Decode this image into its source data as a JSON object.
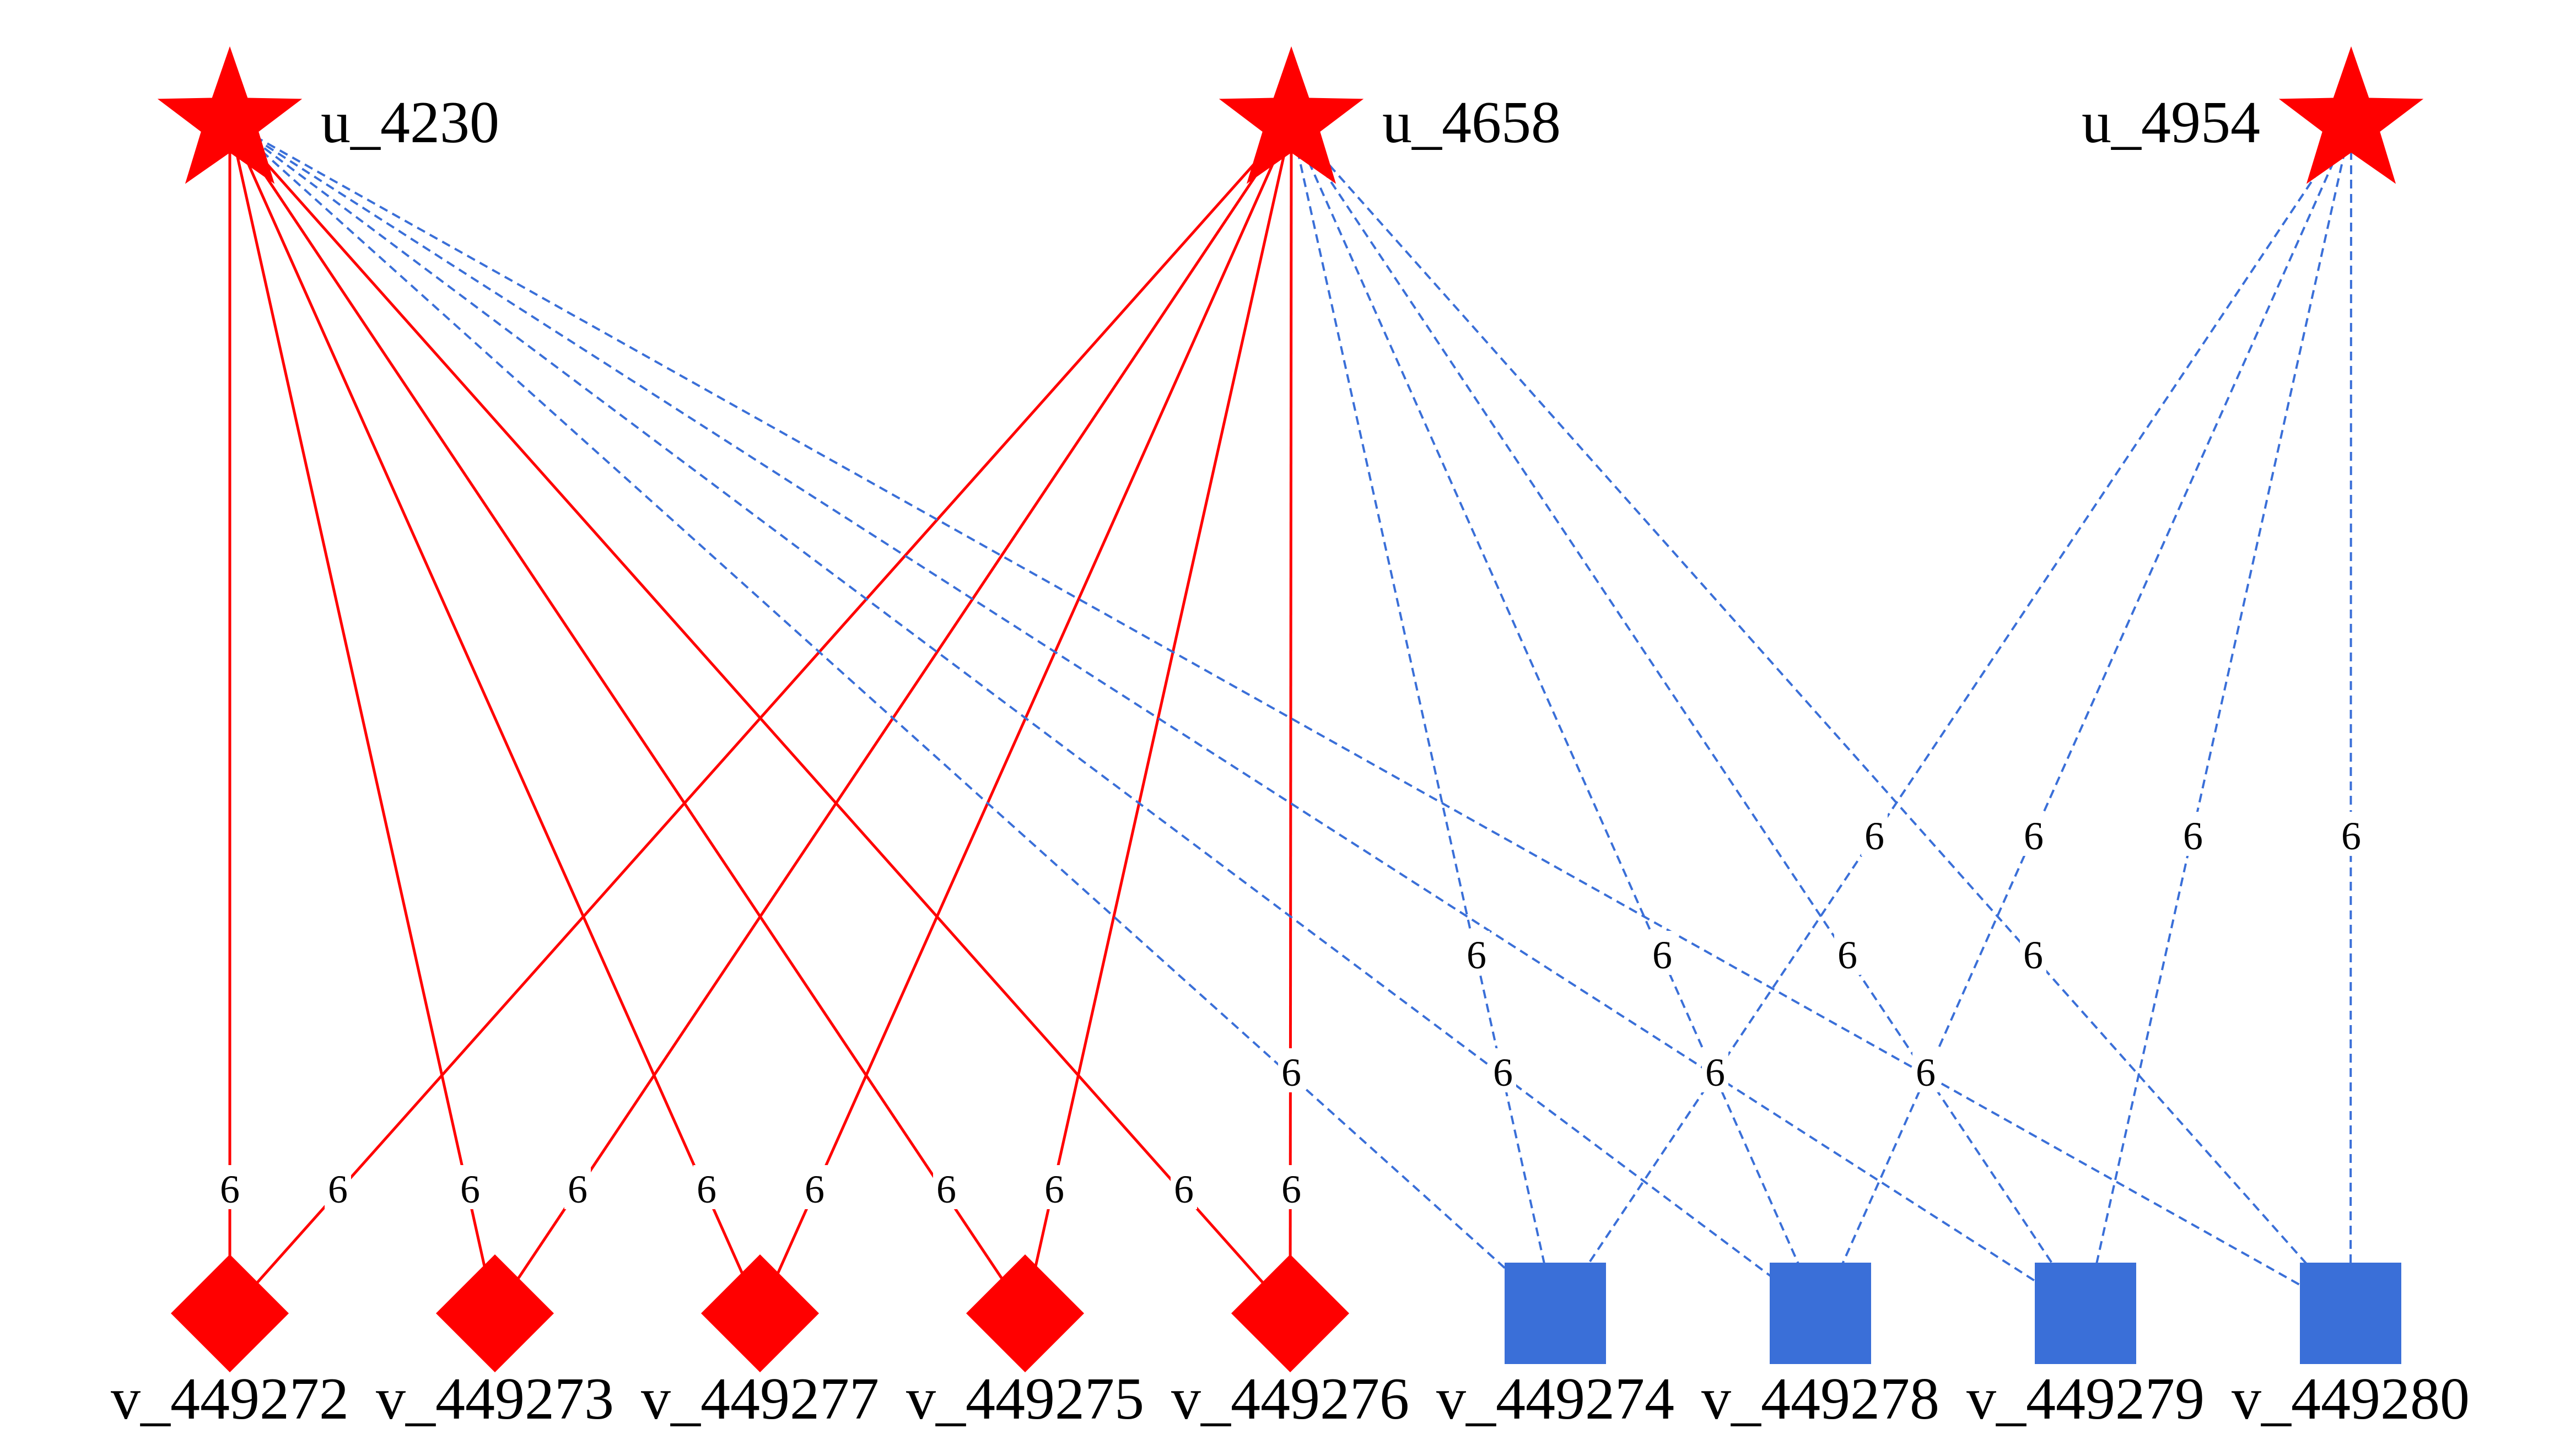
{
  "colors": {
    "user": "#ff0000",
    "red_item": "#ff0000",
    "blue_item": "#3a6fd8",
    "red_edge": "#ff0000",
    "blue_edge": "#3a6fd8"
  },
  "users": [
    {
      "id": "u_4230",
      "label": "u_4230",
      "shape": "star"
    },
    {
      "id": "u_4658",
      "label": "u_4658",
      "shape": "star"
    },
    {
      "id": "u_4954",
      "label": "u_4954",
      "shape": "star"
    }
  ],
  "items": [
    {
      "id": "v_449272",
      "label": "v_449272",
      "shape": "diamond",
      "group": "red"
    },
    {
      "id": "v_449273",
      "label": "v_449273",
      "shape": "diamond",
      "group": "red"
    },
    {
      "id": "v_449277",
      "label": "v_449277",
      "shape": "diamond",
      "group": "red"
    },
    {
      "id": "v_449275",
      "label": "v_449275",
      "shape": "diamond",
      "group": "red"
    },
    {
      "id": "v_449276",
      "label": "v_449276",
      "shape": "diamond",
      "group": "red"
    },
    {
      "id": "v_449274",
      "label": "v_449274",
      "shape": "square",
      "group": "blue"
    },
    {
      "id": "v_449278",
      "label": "v_449278",
      "shape": "square",
      "group": "blue"
    },
    {
      "id": "v_449279",
      "label": "v_449279",
      "shape": "square",
      "group": "blue"
    },
    {
      "id": "v_449280",
      "label": "v_449280",
      "shape": "square",
      "group": "blue"
    }
  ],
  "edges": [
    {
      "from": "u_4230",
      "to": "v_449272",
      "style": "solid",
      "label": "6"
    },
    {
      "from": "u_4230",
      "to": "v_449273",
      "style": "solid",
      "label": "6"
    },
    {
      "from": "u_4230",
      "to": "v_449277",
      "style": "solid",
      "label": "6"
    },
    {
      "from": "u_4230",
      "to": "v_449275",
      "style": "solid",
      "label": "6"
    },
    {
      "from": "u_4230",
      "to": "v_449276",
      "style": "solid",
      "label": "6"
    },
    {
      "from": "u_4658",
      "to": "v_449272",
      "style": "solid",
      "label": "6"
    },
    {
      "from": "u_4658",
      "to": "v_449273",
      "style": "solid",
      "label": "6"
    },
    {
      "from": "u_4658",
      "to": "v_449277",
      "style": "solid",
      "label": "6"
    },
    {
      "from": "u_4658",
      "to": "v_449275",
      "style": "solid",
      "label": "6"
    },
    {
      "from": "u_4658",
      "to": "v_449276",
      "style": "solid",
      "label": "6"
    },
    {
      "from": "u_4230",
      "to": "v_449274",
      "style": "dashed",
      "label": "6"
    },
    {
      "from": "u_4230",
      "to": "v_449278",
      "style": "dashed",
      "label": "6"
    },
    {
      "from": "u_4230",
      "to": "v_449279",
      "style": "dashed",
      "label": "6"
    },
    {
      "from": "u_4230",
      "to": "v_449280",
      "style": "dashed",
      "label": "6"
    },
    {
      "from": "u_4658",
      "to": "v_449274",
      "style": "dashed",
      "label": "6"
    },
    {
      "from": "u_4658",
      "to": "v_449278",
      "style": "dashed",
      "label": "6"
    },
    {
      "from": "u_4658",
      "to": "v_449279",
      "style": "dashed",
      "label": "6"
    },
    {
      "from": "u_4658",
      "to": "v_449280",
      "style": "dashed",
      "label": "6"
    },
    {
      "from": "u_4954",
      "to": "v_449274",
      "style": "dashed",
      "label": "6"
    },
    {
      "from": "u_4954",
      "to": "v_449278",
      "style": "dashed",
      "label": "6"
    },
    {
      "from": "u_4954",
      "to": "v_449279",
      "style": "dashed",
      "label": "6"
    },
    {
      "from": "u_4954",
      "to": "v_449280",
      "style": "dashed",
      "label": "6"
    }
  ]
}
